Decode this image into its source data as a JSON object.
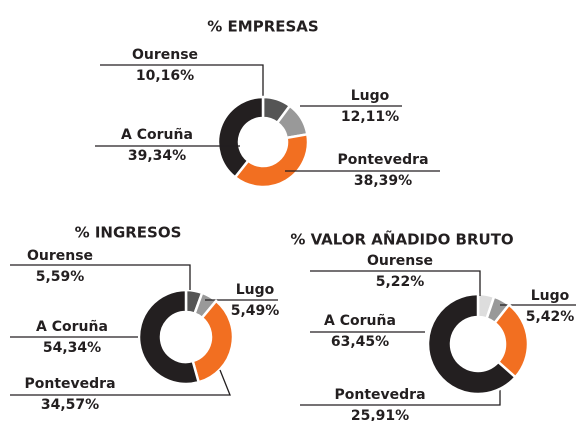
{
  "chart_data": [
    {
      "type": "pie",
      "title": "% EMPRESAS",
      "categories": [
        "Ourense",
        "Lugo",
        "Pontevedra",
        "A Coruña"
      ],
      "values": [
        10.16,
        12.11,
        38.39,
        39.34
      ],
      "value_labels": [
        "10,16%",
        "12,11%",
        "38,39%",
        "39,34%"
      ],
      "colors": [
        "#555555",
        "#999999",
        "#f26f21",
        "#231f20"
      ]
    },
    {
      "type": "pie",
      "title": "% INGRESOS",
      "categories": [
        "Ourense",
        "Lugo",
        "Pontevedra",
        "A Coruña"
      ],
      "values": [
        5.59,
        5.49,
        34.57,
        54.34
      ],
      "value_labels": [
        "5,59%",
        "5,49%",
        "34,57%",
        "54,34%"
      ],
      "colors": [
        "#555555",
        "#999999",
        "#f26f21",
        "#231f20"
      ]
    },
    {
      "type": "pie",
      "title": "% VALOR AÑADIDO BRUTO",
      "categories": [
        "Ourense",
        "Lugo",
        "Pontevedra",
        "A Coruña"
      ],
      "values": [
        5.22,
        5.42,
        25.91,
        63.45
      ],
      "value_labels": [
        "5,22%",
        "5,42%",
        "25,91%",
        "63,45%"
      ],
      "colors": [
        "#dddddd",
        "#999999",
        "#f26f21",
        "#231f20"
      ]
    }
  ]
}
